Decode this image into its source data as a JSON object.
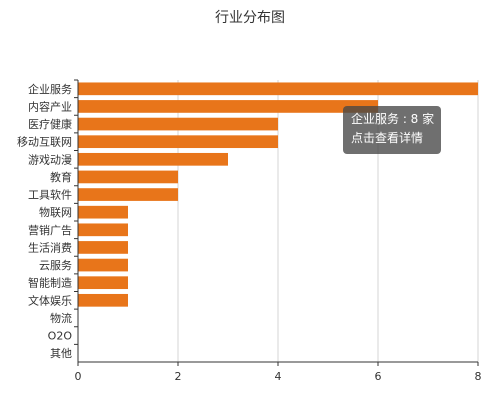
{
  "chart_data": {
    "type": "bar",
    "orientation": "horizontal",
    "title": "行业分布图",
    "categories": [
      "企业服务",
      "内容产业",
      "医疗健康",
      "移动互联网",
      "游戏动漫",
      "教育",
      "工具软件",
      "物联网",
      "营销广告",
      "生活消费",
      "云服务",
      "智能制造",
      "文体娱乐",
      "物流",
      "O2O",
      "其他"
    ],
    "series": [
      {
        "values": [
          8,
          6,
          4,
          4,
          3,
          2,
          2,
          1,
          1,
          1,
          1,
          1,
          1,
          0,
          0,
          0
        ]
      }
    ],
    "xlim": [
      0,
      8
    ],
    "x_ticks": [
      "0",
      "2",
      "4",
      "6",
      "8"
    ],
    "grid": "vertical",
    "bar_color": "#e8751a"
  },
  "tooltip": {
    "line1": "企业服务 : 8 家",
    "line2": "点击查看详情"
  }
}
